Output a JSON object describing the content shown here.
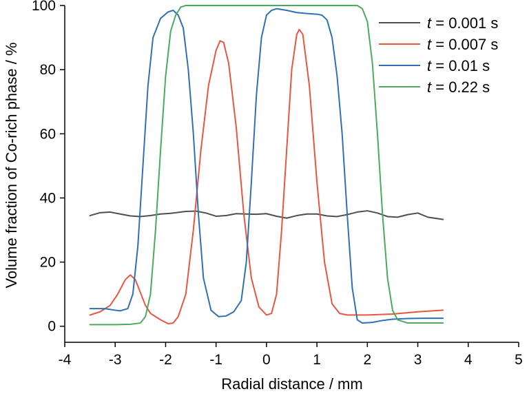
{
  "chart_data": {
    "type": "line",
    "xlabel": "Radial distance / mm",
    "ylabel": "Volume fraction of Co-rich phase / %",
    "xlim": [
      -4,
      5
    ],
    "ylim": [
      -5,
      100
    ],
    "xticks": [
      -4,
      -3,
      -2,
      -1,
      0,
      1,
      2,
      3,
      4,
      5
    ],
    "yticks": [
      0,
      20,
      40,
      60,
      80,
      100
    ],
    "grid": false,
    "legend_position": "top-right",
    "series": [
      {
        "name_prefix": "t",
        "name_suffix": " = 0.001 s",
        "color": "#4d4d4d",
        "points": [
          [
            -3.5,
            34.5
          ],
          [
            -3.3,
            35.4
          ],
          [
            -3.1,
            35.6
          ],
          [
            -2.9,
            35.0
          ],
          [
            -2.7,
            34.4
          ],
          [
            -2.5,
            34.2
          ],
          [
            -2.3,
            34.5
          ],
          [
            -2.1,
            35.0
          ],
          [
            -1.9,
            35.2
          ],
          [
            -1.6,
            35.8
          ],
          [
            -1.4,
            35.9
          ],
          [
            -1.2,
            35.3
          ],
          [
            -1.0,
            34.3
          ],
          [
            -0.8,
            34.5
          ],
          [
            -0.6,
            35.1
          ],
          [
            -0.4,
            35.0
          ],
          [
            -0.2,
            34.9
          ],
          [
            0.0,
            35.1
          ],
          [
            0.2,
            34.3
          ],
          [
            0.4,
            33.7
          ],
          [
            0.6,
            34.5
          ],
          [
            0.8,
            35.0
          ],
          [
            1.0,
            35.0
          ],
          [
            1.2,
            34.4
          ],
          [
            1.4,
            34.2
          ],
          [
            1.6,
            34.8
          ],
          [
            1.8,
            35.6
          ],
          [
            2.0,
            36.0
          ],
          [
            2.2,
            35.3
          ],
          [
            2.4,
            34.2
          ],
          [
            2.6,
            34.0
          ],
          [
            2.8,
            34.8
          ],
          [
            3.0,
            35.3
          ],
          [
            3.2,
            34.0
          ],
          [
            3.5,
            33.3
          ]
        ]
      },
      {
        "name_prefix": "t",
        "name_suffix": " = 0.007 s",
        "color": "#e8553f",
        "points": [
          [
            -3.5,
            3.5
          ],
          [
            -3.3,
            4.5
          ],
          [
            -3.1,
            6.5
          ],
          [
            -2.95,
            10.0
          ],
          [
            -2.8,
            14.5
          ],
          [
            -2.7,
            16.0
          ],
          [
            -2.6,
            14.5
          ],
          [
            -2.5,
            10.5
          ],
          [
            -2.4,
            6.5
          ],
          [
            -2.3,
            4.0
          ],
          [
            -2.1,
            2.0
          ],
          [
            -1.95,
            0.8
          ],
          [
            -1.85,
            1.0
          ],
          [
            -1.75,
            3.0
          ],
          [
            -1.6,
            10.0
          ],
          [
            -1.45,
            30.0
          ],
          [
            -1.3,
            55.0
          ],
          [
            -1.15,
            75.0
          ],
          [
            -1.0,
            86.0
          ],
          [
            -0.92,
            89.0
          ],
          [
            -0.85,
            88.5
          ],
          [
            -0.75,
            82.0
          ],
          [
            -0.6,
            62.0
          ],
          [
            -0.45,
            35.0
          ],
          [
            -0.3,
            15.0
          ],
          [
            -0.15,
            6.0
          ],
          [
            0.0,
            3.5
          ],
          [
            0.1,
            4.0
          ],
          [
            0.2,
            10.0
          ],
          [
            0.3,
            30.0
          ],
          [
            0.4,
            55.0
          ],
          [
            0.5,
            80.0
          ],
          [
            0.6,
            91.0
          ],
          [
            0.65,
            92.5
          ],
          [
            0.72,
            91.0
          ],
          [
            0.85,
            75.0
          ],
          [
            1.0,
            45.0
          ],
          [
            1.15,
            20.0
          ],
          [
            1.3,
            7.0
          ],
          [
            1.45,
            4.0
          ],
          [
            1.6,
            3.5
          ],
          [
            2.0,
            3.5
          ],
          [
            2.5,
            3.8
          ],
          [
            3.0,
            4.5
          ],
          [
            3.5,
            5.0
          ]
        ]
      },
      {
        "name_prefix": "t",
        "name_suffix": " = 0.01 s",
        "color": "#2f6fb5",
        "points": [
          [
            -3.5,
            5.5
          ],
          [
            -3.2,
            5.5
          ],
          [
            -3.0,
            5.0
          ],
          [
            -2.9,
            4.8
          ],
          [
            -2.75,
            5.5
          ],
          [
            -2.65,
            10.0
          ],
          [
            -2.55,
            25.0
          ],
          [
            -2.45,
            50.0
          ],
          [
            -2.35,
            75.0
          ],
          [
            -2.25,
            90.0
          ],
          [
            -2.1,
            96.0
          ],
          [
            -1.95,
            98.0
          ],
          [
            -1.85,
            98.5
          ],
          [
            -1.75,
            97.0
          ],
          [
            -1.65,
            93.0
          ],
          [
            -1.55,
            80.0
          ],
          [
            -1.45,
            60.0
          ],
          [
            -1.35,
            35.0
          ],
          [
            -1.25,
            15.0
          ],
          [
            -1.1,
            5.0
          ],
          [
            -0.95,
            3.0
          ],
          [
            -0.8,
            3.2
          ],
          [
            -0.65,
            4.5
          ],
          [
            -0.5,
            8.0
          ],
          [
            -0.4,
            20.0
          ],
          [
            -0.3,
            45.0
          ],
          [
            -0.2,
            72.0
          ],
          [
            -0.1,
            90.0
          ],
          [
            0.0,
            97.0
          ],
          [
            0.1,
            98.5
          ],
          [
            0.2,
            99.0
          ],
          [
            0.4,
            98.5
          ],
          [
            0.6,
            97.8
          ],
          [
            0.8,
            97.5
          ],
          [
            1.0,
            97.3
          ],
          [
            1.1,
            97.0
          ],
          [
            1.2,
            95.5
          ],
          [
            1.3,
            90.0
          ],
          [
            1.4,
            78.0
          ],
          [
            1.5,
            60.0
          ],
          [
            1.6,
            35.0
          ],
          [
            1.7,
            12.0
          ],
          [
            1.8,
            2.0
          ],
          [
            1.9,
            1.0
          ],
          [
            2.1,
            1.2
          ],
          [
            2.3,
            1.8
          ],
          [
            2.5,
            2.2
          ],
          [
            2.8,
            2.4
          ],
          [
            3.1,
            2.5
          ],
          [
            3.5,
            2.5
          ]
        ]
      },
      {
        "name_prefix": "t",
        "name_suffix": " = 0.22 s",
        "color": "#4caa5c",
        "points": [
          [
            -3.5,
            0.5
          ],
          [
            -3.0,
            0.5
          ],
          [
            -2.7,
            0.6
          ],
          [
            -2.5,
            1.0
          ],
          [
            -2.4,
            3.0
          ],
          [
            -2.3,
            10.0
          ],
          [
            -2.2,
            30.0
          ],
          [
            -2.1,
            55.0
          ],
          [
            -2.0,
            78.0
          ],
          [
            -1.9,
            92.0
          ],
          [
            -1.8,
            97.0
          ],
          [
            -1.7,
            99.5
          ],
          [
            -1.6,
            100.0
          ],
          [
            1.8,
            100.0
          ],
          [
            1.9,
            99.0
          ],
          [
            2.0,
            95.0
          ],
          [
            2.1,
            82.0
          ],
          [
            2.2,
            60.0
          ],
          [
            2.3,
            35.0
          ],
          [
            2.4,
            15.0
          ],
          [
            2.5,
            5.0
          ],
          [
            2.6,
            2.0
          ],
          [
            2.8,
            1.0
          ],
          [
            3.0,
            1.0
          ],
          [
            3.5,
            1.0
          ]
        ]
      }
    ]
  }
}
